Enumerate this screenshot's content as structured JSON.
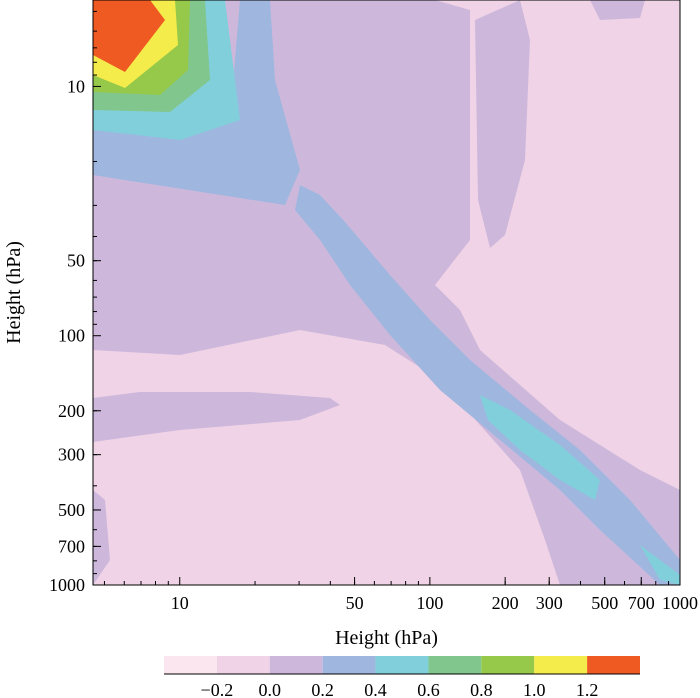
{
  "chart_data": {
    "type": "heatmap",
    "xlabel": "Height (hPa)",
    "ylabel": "Height (hPa)",
    "x_scale": "log",
    "y_scale": "log",
    "x_ticks": [
      10,
      50,
      100,
      200,
      300,
      500,
      700,
      1000
    ],
    "x_tick_labels": [
      "10",
      "50",
      "100",
      "200",
      "300",
      "500",
      "700",
      "1000"
    ],
    "y_ticks": [
      10,
      50,
      100,
      200,
      300,
      500,
      700,
      1000
    ],
    "y_tick_labels": [
      "10",
      "50",
      "100",
      "200",
      "300",
      "500",
      "700",
      "1000"
    ],
    "xlim": [
      4.5,
      1000
    ],
    "ylim": [
      4.5,
      1000
    ],
    "y_inverted": true,
    "colorbar": {
      "orientation": "horizontal",
      "levels": [
        -0.4,
        -0.2,
        0.0,
        0.2,
        0.4,
        0.6,
        0.8,
        1.0,
        1.2,
        1.4
      ],
      "colors": [
        "#fbe6ef",
        "#f0d3e6",
        "#cdb8dc",
        "#9fb6df",
        "#82cfdc",
        "#80c68d",
        "#96c84a",
        "#f4ec4a",
        "#ee5a22"
      ],
      "tick_labels": [
        "−0.2",
        "0.0",
        "0.2",
        "0.4",
        "0.6",
        "0.8",
        "1.0",
        "1.2"
      ]
    },
    "regions": [
      {
        "value": 1.3,
        "description": "maximum near (5-8 hPa, 5-8 hPa)"
      },
      {
        "value": 0.3,
        "description": "diagonal band along x = y from 20 to 1000 hPa"
      },
      {
        "value": 0.5,
        "description": "diagonal core between 180 and 450 hPa"
      },
      {
        "value": 0.1,
        "description": "upper-left region above 150 hPa"
      }
    ]
  }
}
